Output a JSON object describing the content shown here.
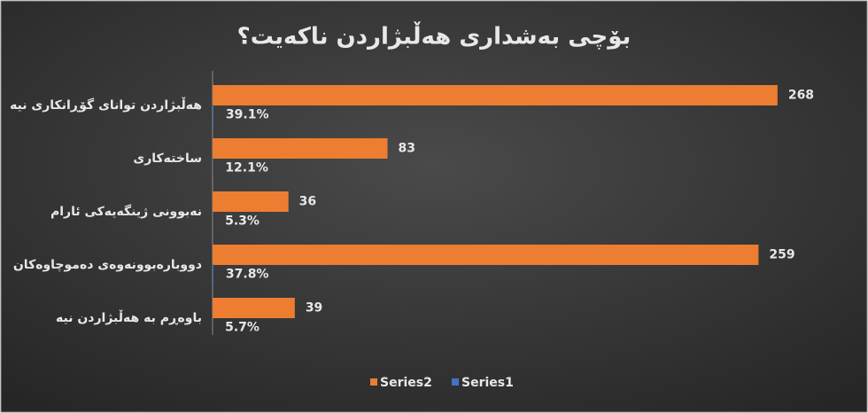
{
  "chart_data": {
    "type": "hbar",
    "title": "بۆچی بەشداری هەڵبژاردن ناکەیت؟",
    "categories": [
      "هەڵبژاردن توانای گۆڕانکاری نیە",
      "ساختەکاری",
      "نەبوونی ژینگەیەکی ئارام",
      "دووبارەبوونەوەی دەموچاوەکان",
      "باوەڕم بە هەڵبژاردن نیە"
    ],
    "series": [
      {
        "name": "Series2",
        "color": "#ed7d31",
        "values": [
          268,
          83,
          36,
          259,
          39
        ]
      },
      {
        "name": "Series1",
        "color": "#4472c4",
        "values": [
          0.391,
          0.121,
          0.053,
          0.378,
          0.057
        ],
        "value_labels": [
          "39.1%",
          "12.1%",
          "5.3%",
          "37.8%",
          "5.7%"
        ]
      }
    ],
    "xlim": [
      0,
      300
    ],
    "grid": false,
    "legend": "bottom"
  }
}
